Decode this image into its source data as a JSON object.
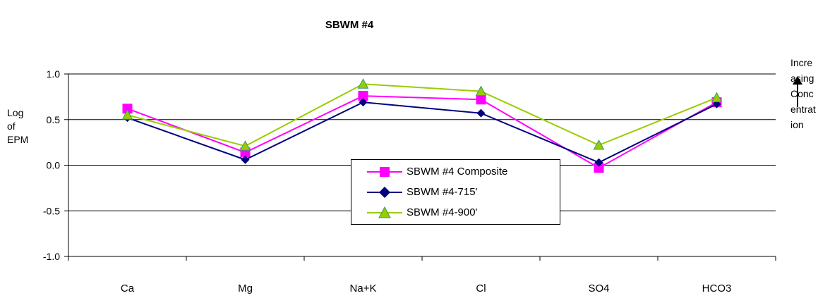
{
  "chart_data": {
    "type": "line",
    "title": "SBWM #4",
    "ylabel": "Log of EPM",
    "right_annotation": "Increasing Concentration",
    "categories": [
      "Ca",
      "Mg",
      "Na+K",
      "Cl",
      "SO4",
      "HCO3"
    ],
    "ylim": [
      -1.0,
      1.0
    ],
    "yticks": [
      "1.0",
      "0.5",
      "0.0",
      "-0.5",
      "-1.0"
    ],
    "ytick_values": [
      1.0,
      0.5,
      0.0,
      -0.5,
      -1.0
    ],
    "grid": true,
    "legend_position": "center-right",
    "series": [
      {
        "name": "SBWM #4 Composite",
        "color": "#ff00ff",
        "marker": "square",
        "values": [
          0.62,
          0.14,
          0.76,
          0.72,
          -0.03,
          0.69
        ]
      },
      {
        "name": "SBWM #4-715'",
        "color": "#000080",
        "marker": "diamond",
        "values": [
          0.52,
          0.06,
          0.69,
          0.57,
          0.03,
          0.67
        ]
      },
      {
        "name": "SBWM #4-900'",
        "color": "#99cc00",
        "marker": "triangle",
        "values": [
          0.55,
          0.21,
          0.89,
          0.81,
          0.22,
          0.74
        ]
      }
    ]
  }
}
